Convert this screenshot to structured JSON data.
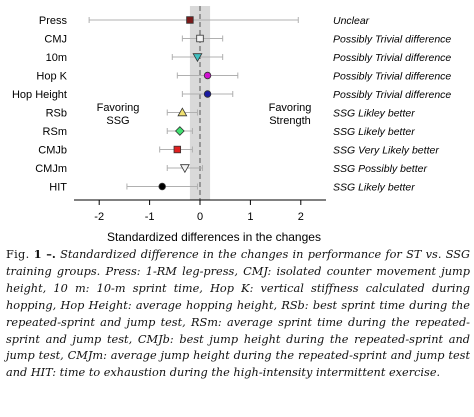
{
  "chart_data": {
    "type": "scatter",
    "title": "",
    "xlabel": "Standardized differences in the changes",
    "ylabel": "",
    "xlim": [
      -2.5,
      2.5
    ],
    "xticks": [
      -2,
      -1,
      0,
      1,
      2
    ],
    "xtick_labels": [
      "-2",
      "-1",
      "0",
      "1",
      "2"
    ],
    "grid": false,
    "trivial_band": [
      -0.2,
      0.2
    ],
    "zero_line": 0,
    "region_labels": {
      "left": "Favoring\nSSG",
      "right": "Favoring\nStrength"
    },
    "rows": [
      {
        "label": "Press",
        "estimate": -0.2,
        "ci": [
          -2.2,
          1.95
        ],
        "marker": "square",
        "color": "#7a1a1a",
        "inference": "Unclear"
      },
      {
        "label": "CMJ",
        "estimate": 0.0,
        "ci": [
          -0.35,
          0.45
        ],
        "marker": "square",
        "color": "#f2f2f2",
        "inference": "Possibly Trivial difference"
      },
      {
        "label": "10m",
        "estimate": -0.05,
        "ci": [
          -0.55,
          0.45
        ],
        "marker": "triangle-down",
        "color": "#40c0c0",
        "inference": "Possibly Trivial difference"
      },
      {
        "label": "Hop K",
        "estimate": 0.15,
        "ci": [
          -0.45,
          0.75
        ],
        "marker": "circle",
        "color": "#d010d0",
        "inference": "Possibly Trivial difference"
      },
      {
        "label": "Hop Height",
        "estimate": 0.15,
        "ci": [
          -0.35,
          0.65
        ],
        "marker": "circle",
        "color": "#1a1aa0",
        "inference": "Possibly Trivial difference"
      },
      {
        "label": "RSb",
        "estimate": -0.35,
        "ci": [
          -0.65,
          -0.05
        ],
        "marker": "triangle-up",
        "color": "#f0e070",
        "inference": "SSG Likley better"
      },
      {
        "label": "RSm",
        "estimate": -0.4,
        "ci": [
          -0.65,
          -0.15
        ],
        "marker": "diamond",
        "color": "#40e070",
        "inference": "SSG Likely better"
      },
      {
        "label": "CMJb",
        "estimate": -0.45,
        "ci": [
          -0.8,
          -0.15
        ],
        "marker": "square",
        "color": "#e02020",
        "inference": "SSG Very Likely  better"
      },
      {
        "label": "CMJm",
        "estimate": -0.3,
        "ci": [
          -0.65,
          0.05
        ],
        "marker": "triangle-down",
        "color": "#f4f4f4",
        "inference": "SSG Possibly better"
      },
      {
        "label": "HIT",
        "estimate": -0.75,
        "ci": [
          -1.45,
          -0.05
        ],
        "marker": "circle",
        "color": "#000000",
        "inference": "SSG Likely  better"
      }
    ]
  },
  "caption": {
    "label": "Fig.",
    "number": "1",
    "dash": " –.",
    "text": " Standardized difference in the changes in performance for ST vs. SSG training groups. Press: 1-RM leg-press, CMJ: isolated counter movement jump height, 10 m: 10-m sprint time, Hop K: vertical stiffness calculated during hopping, Hop Height: average hopping height, RSb: best sprint time during the repeated-sprint and jump test, RSm: average sprint time during the repeated-sprint and jump test, CMJb: best jump height during the repeated-sprint and jump test, CMJm: average jump height during the repeated-sprint and jump test and HIT: time to exhaustion during the high-intensity intermittent exercise."
  }
}
